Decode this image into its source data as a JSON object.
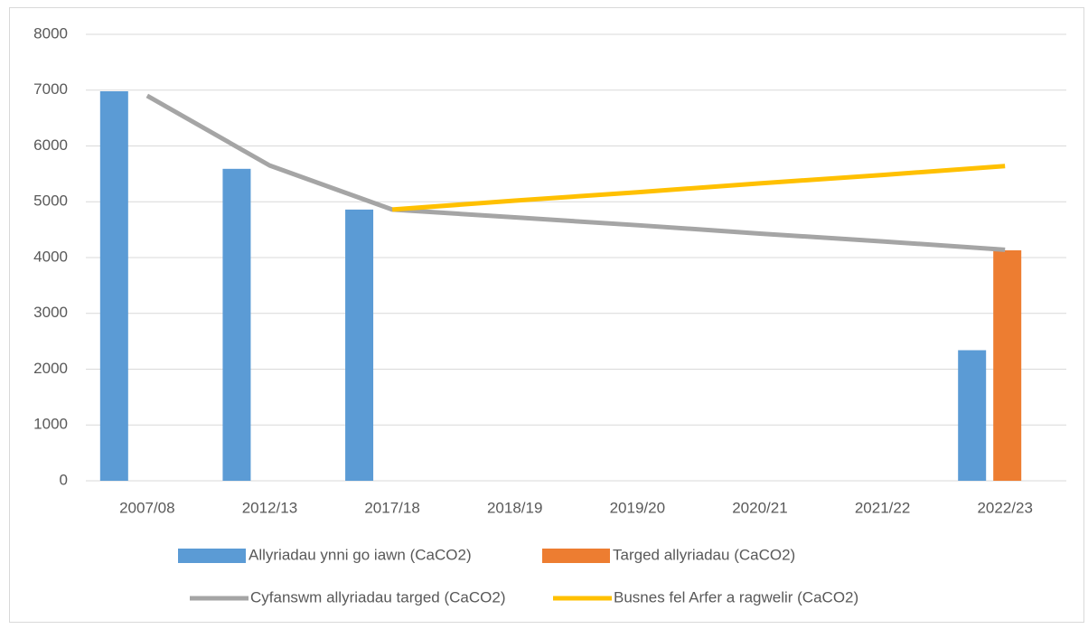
{
  "chart_data": {
    "type": "bar-line",
    "categories": [
      "2007/08",
      "2012/13",
      "2017/18",
      "2018/19",
      "2019/20",
      "2020/21",
      "2021/22",
      "2022/23"
    ],
    "series": [
      {
        "name": "Allyriadau ynni go iawn (CaCO2)",
        "color": "#5b9bd5",
        "kind": "bar",
        "values": [
          6980,
          5590,
          4860,
          null,
          null,
          null,
          null,
          2340
        ]
      },
      {
        "name": "Targed allyriadau (CaCO2)",
        "color": "#ed7d31",
        "kind": "bar",
        "values": [
          null,
          null,
          null,
          null,
          null,
          null,
          null,
          4130
        ]
      },
      {
        "name": "Cyfanswm allyriadau targed (CaCO2)",
        "color": "#a5a5a5",
        "kind": "line",
        "values": [
          6900,
          5650,
          4860,
          4720,
          4580,
          4430,
          4290,
          4140
        ]
      },
      {
        "name": "Busnes fel Arfer a ragwelir (CaCO2)",
        "color": "#ffc000",
        "kind": "line",
        "values": [
          null,
          null,
          4860,
          5020,
          5170,
          5330,
          5480,
          5640
        ]
      }
    ],
    "ylim": [
      0,
      8000
    ],
    "yticks": [
      0,
      1000,
      2000,
      3000,
      4000,
      5000,
      6000,
      7000,
      8000
    ],
    "grid": true
  }
}
